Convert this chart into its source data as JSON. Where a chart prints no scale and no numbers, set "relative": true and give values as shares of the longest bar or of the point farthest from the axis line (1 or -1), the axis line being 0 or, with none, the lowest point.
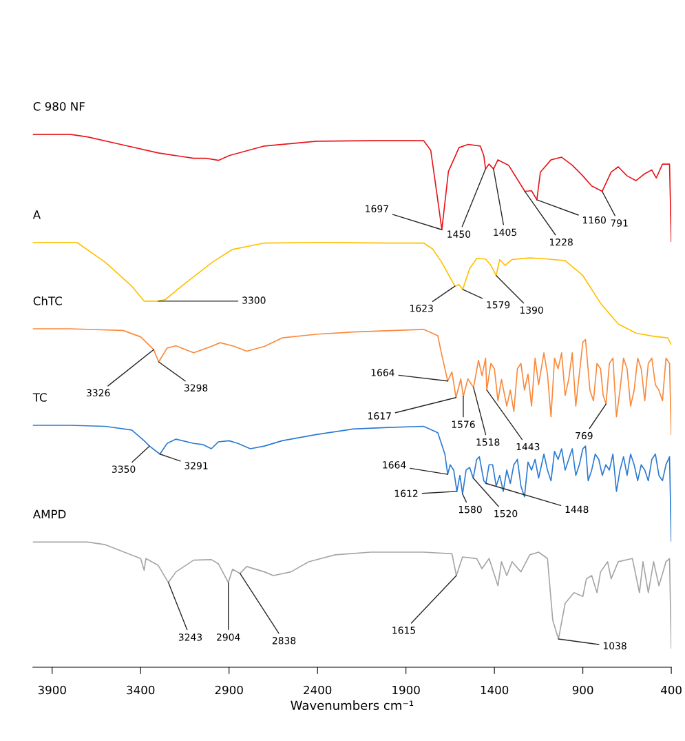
{
  "chart_data": {
    "type": "line",
    "relative": true,
    "xlabel": "Wavenumbers cm⁻¹",
    "xlim": [
      4009,
      400
    ],
    "xticks": [
      3900,
      3400,
      2900,
      2400,
      1900,
      1400,
      900,
      400
    ],
    "grid": false,
    "legend": false,
    "marker": "none",
    "line_style": "solid",
    "series": [
      {
        "name": "C 980 NF",
        "color": "#e8161b",
        "x": [
          4009,
          3800,
          3700,
          3500,
          3300,
          3100,
          3028,
          2960,
          2900,
          2700,
          2405,
          2100,
          1800,
          1760,
          1730,
          1697,
          1660,
          1600,
          1548,
          1480,
          1460,
          1450,
          1430,
          1405,
          1380,
          1320,
          1228,
          1190,
          1160,
          1140,
          1080,
          1020,
          960,
          900,
          850,
          791,
          740,
          700,
          650,
          600,
          550,
          510,
          485,
          450,
          410,
          400
        ],
        "values": [
          1,
          1,
          0.995,
          0.98,
          0.965,
          0.955,
          0.955,
          0.951,
          0.96,
          0.978,
          0.987,
          0.988,
          0.988,
          0.97,
          0.9,
          0.821,
          0.93,
          0.975,
          0.981,
          0.978,
          0.96,
          0.935,
          0.944,
          0.935,
          0.952,
          0.942,
          0.893,
          0.894,
          0.877,
          0.929,
          0.952,
          0.957,
          0.942,
          0.922,
          0.903,
          0.893,
          0.929,
          0.939,
          0.922,
          0.913,
          0.926,
          0.933,
          0.918,
          0.944,
          0.944,
          0.799
        ]
      },
      {
        "name": "A",
        "color": "#ffc000",
        "x": [
          4009,
          3760,
          3600,
          3450,
          3380,
          3300,
          3260,
          3150,
          2990,
          2880,
          2700,
          2400,
          2000,
          1800,
          1750,
          1700,
          1623,
          1600,
          1579,
          1540,
          1500,
          1450,
          1420,
          1390,
          1370,
          1340,
          1300,
          1200,
          1100,
          1000,
          900,
          800,
          700,
          600,
          500,
          420,
          400
        ],
        "values": [
          0.797,
          0.797,
          0.76,
          0.715,
          0.687,
          0.687,
          0.69,
          0.72,
          0.761,
          0.784,
          0.796,
          0.797,
          0.796,
          0.796,
          0.785,
          0.761,
          0.715,
          0.718,
          0.709,
          0.748,
          0.767,
          0.766,
          0.754,
          0.735,
          0.765,
          0.754,
          0.765,
          0.768,
          0.766,
          0.763,
          0.735,
          0.683,
          0.644,
          0.627,
          0.621,
          0.618,
          0.605
        ]
      },
      {
        "name": "ChTC",
        "color": "#f98a3c",
        "x": [
          4009,
          3800,
          3500,
          3400,
          3326,
          3298,
          3250,
          3200,
          3100,
          3000,
          2950,
          2870,
          2800,
          2700,
          2600,
          2400,
          2200,
          1800,
          1720,
          1700,
          1664,
          1640,
          1617,
          1590,
          1576,
          1550,
          1518,
          1490,
          1470,
          1450,
          1443,
          1420,
          1400,
          1380,
          1360,
          1330,
          1310,
          1290,
          1270,
          1250,
          1230,
          1210,
          1190,
          1170,
          1150,
          1120,
          1100,
          1080,
          1060,
          1040,
          1020,
          1000,
          980,
          960,
          940,
          920,
          900,
          885,
          860,
          840,
          820,
          800,
          785,
          769,
          750,
          730,
          710,
          690,
          670,
          650,
          630,
          610,
          590,
          570,
          550,
          530,
          510,
          490,
          470,
          450,
          430,
          410,
          400
        ],
        "values": [
          0.635,
          0.635,
          0.632,
          0.62,
          0.596,
          0.573,
          0.599,
          0.603,
          0.59,
          0.602,
          0.609,
          0.602,
          0.593,
          0.602,
          0.618,
          0.625,
          0.629,
          0.634,
          0.622,
          0.59,
          0.537,
          0.554,
          0.506,
          0.541,
          0.508,
          0.541,
          0.525,
          0.576,
          0.547,
          0.58,
          0.52,
          0.57,
          0.56,
          0.5,
          0.54,
          0.49,
          0.52,
          0.48,
          0.56,
          0.57,
          0.52,
          0.55,
          0.49,
          0.58,
          0.53,
          0.59,
          0.55,
          0.47,
          0.58,
          0.56,
          0.59,
          0.51,
          0.54,
          0.59,
          0.49,
          0.55,
          0.61,
          0.615,
          0.52,
          0.5,
          0.57,
          0.56,
          0.51,
          0.494,
          0.57,
          0.58,
          0.47,
          0.52,
          0.58,
          0.56,
          0.49,
          0.52,
          0.58,
          0.56,
          0.5,
          0.57,
          0.58,
          0.53,
          0.52,
          0.5,
          0.58,
          0.57,
          0.437
        ]
      },
      {
        "name": "TC",
        "color": "#2b7bd2",
        "x": [
          4009,
          3800,
          3600,
          3450,
          3380,
          3350,
          3291,
          3250,
          3200,
          3100,
          3050,
          3000,
          2960,
          2900,
          2850,
          2780,
          2700,
          2600,
          2400,
          2200,
          2000,
          1800,
          1720,
          1680,
          1664,
          1650,
          1630,
          1612,
          1595,
          1580,
          1560,
          1540,
          1520,
          1500,
          1485,
          1460,
          1448,
          1430,
          1410,
          1390,
          1370,
          1350,
          1330,
          1310,
          1290,
          1270,
          1250,
          1230,
          1210,
          1190,
          1170,
          1150,
          1120,
          1100,
          1080,
          1060,
          1040,
          1020,
          1000,
          980,
          960,
          940,
          920,
          900,
          885,
          870,
          850,
          830,
          810,
          790,
          770,
          750,
          730,
          710,
          690,
          670,
          650,
          630,
          610,
          590,
          570,
          550,
          530,
          510,
          490,
          470,
          450,
          430,
          410,
          400
        ],
        "values": [
          0.454,
          0.454,
          0.452,
          0.445,
          0.425,
          0.415,
          0.4,
          0.42,
          0.428,
          0.42,
          0.418,
          0.41,
          0.423,
          0.425,
          0.42,
          0.41,
          0.415,
          0.425,
          0.437,
          0.447,
          0.45,
          0.452,
          0.44,
          0.4,
          0.362,
          0.38,
          0.37,
          0.33,
          0.36,
          0.325,
          0.37,
          0.375,
          0.355,
          0.39,
          0.395,
          0.35,
          0.345,
          0.38,
          0.38,
          0.34,
          0.36,
          0.33,
          0.37,
          0.345,
          0.38,
          0.39,
          0.34,
          0.32,
          0.385,
          0.37,
          0.39,
          0.355,
          0.4,
          0.37,
          0.35,
          0.405,
          0.39,
          0.41,
          0.37,
          0.39,
          0.41,
          0.36,
          0.38,
          0.41,
          0.415,
          0.35,
          0.37,
          0.4,
          0.39,
          0.36,
          0.38,
          0.37,
          0.4,
          0.33,
          0.37,
          0.395,
          0.36,
          0.4,
          0.38,
          0.35,
          0.38,
          0.37,
          0.35,
          0.39,
          0.4,
          0.36,
          0.35,
          0.38,
          0.395,
          0.237
        ]
      },
      {
        "name": "AMPD",
        "color": "#a6a6a6",
        "x": [
          4009,
          3700,
          3600,
          3500,
          3400,
          3380,
          3370,
          3300,
          3243,
          3200,
          3100,
          3000,
          2960,
          2904,
          2880,
          2838,
          2800,
          2700,
          2650,
          2550,
          2450,
          2300,
          2100,
          1800,
          1640,
          1615,
          1580,
          1500,
          1470,
          1430,
          1380,
          1360,
          1330,
          1300,
          1250,
          1200,
          1150,
          1100,
          1070,
          1038,
          1000,
          950,
          900,
          880,
          850,
          820,
          800,
          760,
          740,
          700,
          620,
          580,
          560,
          530,
          500,
          470,
          430,
          410,
          400
        ],
        "values": [
          0.235,
          0.235,
          0.23,
          0.217,
          0.204,
          0.182,
          0.204,
          0.191,
          0.159,
          0.179,
          0.201,
          0.202,
          0.194,
          0.159,
          0.184,
          0.176,
          0.189,
          0.179,
          0.172,
          0.179,
          0.198,
          0.211,
          0.216,
          0.216,
          0.213,
          0.172,
          0.207,
          0.204,
          0.185,
          0.204,
          0.153,
          0.198,
          0.172,
          0.198,
          0.179,
          0.211,
          0.216,
          0.204,
          0.088,
          0.053,
          0.12,
          0.14,
          0.133,
          0.166,
          0.172,
          0.14,
          0.179,
          0.198,
          0.166,
          0.198,
          0.204,
          0.14,
          0.198,
          0.14,
          0.198,
          0.153,
          0.198,
          0.204,
          0.036
        ]
      }
    ],
    "annotations": [
      {
        "text": "1697",
        "x": 1697,
        "y": 0.821
      },
      {
        "text": "1450",
        "x": 1450,
        "y": 0.935
      },
      {
        "text": "1405",
        "x": 1405,
        "y": 0.935
      },
      {
        "text": "1228",
        "x": 1228,
        "y": 0.893
      },
      {
        "text": "1160",
        "x": 1160,
        "y": 0.877
      },
      {
        "text": "791",
        "x": 791,
        "y": 0.893
      },
      {
        "text": "3300",
        "x": 3300,
        "y": 0.687
      },
      {
        "text": "1623",
        "x": 1623,
        "y": 0.715
      },
      {
        "text": "1579",
        "x": 1579,
        "y": 0.709
      },
      {
        "text": "1390",
        "x": 1390,
        "y": 0.735
      },
      {
        "text": "3326",
        "x": 3326,
        "y": 0.596
      },
      {
        "text": "3298",
        "x": 3298,
        "y": 0.573
      },
      {
        "text": "1664",
        "x": 1664,
        "y": 0.537
      },
      {
        "text": "1617",
        "x": 1617,
        "y": 0.506
      },
      {
        "text": "1576",
        "x": 1576,
        "y": 0.508
      },
      {
        "text": "1518",
        "x": 1518,
        "y": 0.525
      },
      {
        "text": "1443",
        "x": 1443,
        "y": 0.52
      },
      {
        "text": "769",
        "x": 769,
        "y": 0.494
      },
      {
        "text": "3350",
        "x": 3350,
        "y": 0.415
      },
      {
        "text": "3291",
        "x": 3291,
        "y": 0.4
      },
      {
        "text": "1664",
        "x": 1664,
        "y": 0.362
      },
      {
        "text": "1612",
        "x": 1612,
        "y": 0.33
      },
      {
        "text": "1580",
        "x": 1580,
        "y": 0.325
      },
      {
        "text": "1520",
        "x": 1520,
        "y": 0.355
      },
      {
        "text": "1448",
        "x": 1448,
        "y": 0.345
      },
      {
        "text": "3243",
        "x": 3243,
        "y": 0.159
      },
      {
        "text": "2904",
        "x": 2904,
        "y": 0.159
      },
      {
        "text": "2838",
        "x": 2838,
        "y": 0.176
      },
      {
        "text": "1615",
        "x": 1615,
        "y": 0.172
      },
      {
        "text": "1038",
        "x": 1038,
        "y": 0.053
      }
    ]
  }
}
